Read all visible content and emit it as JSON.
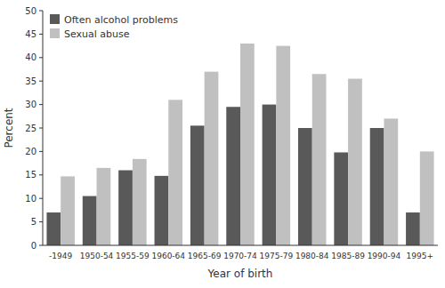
{
  "chart_data": {
    "type": "bar",
    "xlabel": "Year of birth",
    "ylabel": "Percent",
    "categories": [
      "-1949",
      "1950-54",
      "1955-59",
      "1960-64",
      "1965-69",
      "1970-74",
      "1975-79",
      "1980-84",
      "1985-89",
      "1990-94",
      "1995+"
    ],
    "series": [
      {
        "name": "Often alcohol problems",
        "color": "#595959",
        "values": [
          7,
          10.5,
          16,
          14.8,
          25.5,
          29.5,
          30,
          25,
          19.8,
          25,
          7
        ]
      },
      {
        "name": "Sexual abuse",
        "color": "#c0c0c0",
        "values": [
          14.7,
          16.5,
          18.4,
          31,
          37,
          43,
          42.5,
          36.5,
          35.5,
          27,
          20
        ]
      }
    ],
    "ylim": [
      0,
      50
    ],
    "yticks": [
      0,
      5,
      10,
      15,
      20,
      25,
      30,
      35,
      40,
      45,
      50
    ],
    "grid": false,
    "legend": "upper left"
  }
}
